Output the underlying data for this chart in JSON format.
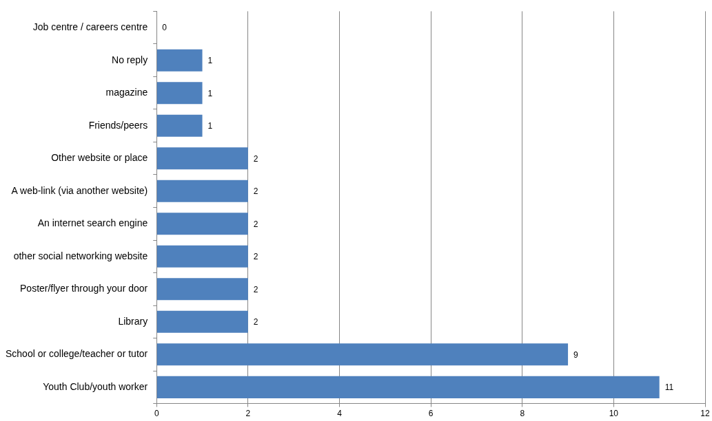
{
  "chart_data": {
    "type": "bar",
    "orientation": "horizontal",
    "categories": [
      "Job centre / careers centre",
      "No reply",
      "magazine",
      "Friends/peers",
      "Other website or place",
      "A web-link (via another website)",
      "An internet search engine",
      "other social networking website",
      "Poster/flyer through your door",
      "Library",
      "School or college/teacher or tutor",
      "Youth Club/youth worker"
    ],
    "values": [
      0,
      1,
      1,
      1,
      2,
      2,
      2,
      2,
      2,
      2,
      9,
      11
    ],
    "color": "#4f81bd",
    "xlim": [
      0,
      12
    ],
    "xticks": [
      0,
      2,
      4,
      6,
      8,
      10,
      12
    ],
    "grid": "x",
    "data_labels": true,
    "legend": false
  }
}
